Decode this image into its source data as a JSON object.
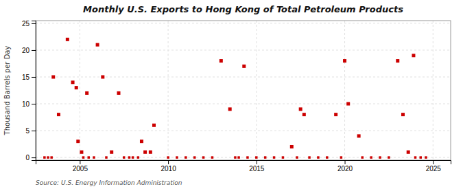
{
  "chart_data": {
    "type": "scatter",
    "title": "Monthly U.S. Exports to Hong Kong of Total Petroleum Products",
    "ylabel": "Thousand Barrels per Day",
    "annotation": "Source: U.S. Energy Information Administration",
    "xlim": [
      2002.5,
      2026
    ],
    "ylim": [
      -0.5,
      25.5
    ],
    "xticks": [
      2005,
      2010,
      2015,
      2020,
      2025
    ],
    "yticks": [
      0,
      5,
      10,
      15,
      20,
      25
    ],
    "grid": true,
    "series": [
      {
        "color": "#cc0000",
        "marker": "square",
        "x": [
          2003.0,
          2003.2,
          2003.4,
          2005.2,
          2005.5,
          2005.8,
          2006.5,
          2007.5,
          2007.8,
          2008.0,
          2008.3,
          2010.0,
          2010.5,
          2011.0,
          2011.5,
          2012.0,
          2012.5,
          2013.8,
          2014.0,
          2014.5,
          2015.0,
          2015.5,
          2016.0,
          2016.5,
          2017.3,
          2018.0,
          2018.5,
          2019.0,
          2019.8,
          2021.0,
          2021.5,
          2022.0,
          2022.5,
          2024.0,
          2024.3,
          2024.6
        ],
        "values": [
          0,
          0,
          0,
          0,
          0,
          0,
          0,
          0,
          0,
          0,
          0,
          0,
          0,
          0,
          0,
          0,
          0,
          0,
          0,
          0,
          0,
          0,
          0,
          0,
          0,
          0,
          0,
          0,
          0,
          0,
          0,
          0,
          0,
          0,
          0,
          0
        ]
      },
      {
        "color": "#cc0000",
        "marker": "square",
        "x": [
          2003.5,
          2003.8,
          2004.3,
          2004.6,
          2004.8,
          2004.9,
          2005.1,
          2005.4,
          2006.0,
          2006.3,
          2006.8,
          2007.2,
          2008.5,
          2008.7,
          2009.0,
          2009.2,
          2013.0,
          2013.5,
          2014.3,
          2017.0,
          2017.5,
          2017.7,
          2019.5,
          2020.0,
          2020.2,
          2020.8,
          2023.0,
          2023.3,
          2023.6,
          2023.9
        ],
        "values": [
          15,
          8,
          22,
          14,
          13,
          3,
          1,
          12,
          21,
          15,
          1,
          12,
          3,
          1,
          1,
          6,
          18,
          9,
          17,
          2,
          9,
          8,
          8,
          18,
          10,
          4,
          18,
          8,
          1,
          19
        ]
      }
    ]
  }
}
